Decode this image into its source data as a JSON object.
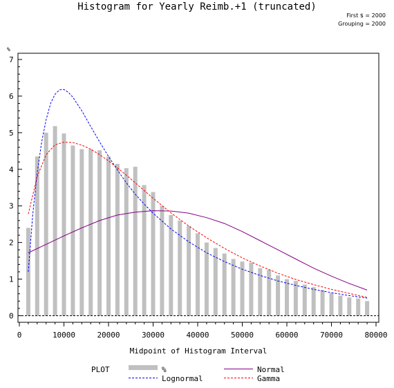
{
  "chart_data": {
    "type": "bar",
    "title": "Histogram for Yearly Reimb.+1 (truncated)",
    "notes": [
      "First $ = 2000",
      "Grouping = 2000"
    ],
    "xlabel": "Midpoint of Histogram Interval",
    "ylabel": "%",
    "xlim": [
      0,
      80000
    ],
    "ylim": [
      0,
      7
    ],
    "x_ticks": [
      0,
      10000,
      20000,
      30000,
      40000,
      50000,
      60000,
      70000,
      80000
    ],
    "y_ticks": [
      0,
      1,
      2,
      3,
      4,
      5,
      6,
      7
    ],
    "bar_color": "#c0c0c0",
    "bars": {
      "midpoints": [
        2000,
        4000,
        6000,
        8000,
        10000,
        12000,
        14000,
        16000,
        18000,
        20000,
        22000,
        24000,
        26000,
        28000,
        30000,
        32000,
        34000,
        36000,
        38000,
        40000,
        42000,
        44000,
        46000,
        48000,
        50000,
        52000,
        54000,
        56000,
        58000,
        60000,
        62000,
        64000,
        66000,
        68000,
        70000,
        72000,
        74000,
        76000,
        78000
      ],
      "values": [
        2.4,
        4.35,
        5.0,
        5.18,
        4.98,
        4.65,
        4.55,
        4.55,
        4.52,
        4.35,
        4.15,
        4.03,
        4.07,
        3.57,
        3.38,
        3.0,
        2.75,
        2.6,
        2.45,
        2.25,
        2.0,
        1.85,
        1.7,
        1.55,
        1.48,
        1.45,
        1.3,
        1.25,
        1.1,
        1.0,
        0.95,
        0.85,
        0.78,
        0.7,
        0.62,
        0.55,
        0.5,
        0.47,
        0.4
      ]
    },
    "curves": [
      {
        "name": "Normal",
        "color": "#800080",
        "dash": "solid",
        "x": [
          2000,
          6000,
          10000,
          14000,
          18000,
          22000,
          26000,
          30000,
          34000,
          38000,
          42000,
          46000,
          50000,
          54000,
          58000,
          62000,
          66000,
          70000,
          74000,
          78000
        ],
        "y": [
          1.72,
          1.95,
          2.18,
          2.4,
          2.6,
          2.75,
          2.83,
          2.87,
          2.86,
          2.8,
          2.68,
          2.52,
          2.3,
          2.05,
          1.8,
          1.55,
          1.3,
          1.08,
          0.88,
          0.7
        ]
      },
      {
        "name": "Lognormal",
        "color": "#0000ff",
        "dash": "dashed",
        "x": [
          2000,
          3000,
          4000,
          5000,
          6000,
          7000,
          8000,
          9000,
          10000,
          11000,
          12000,
          14000,
          16000,
          18000,
          20000,
          22000,
          24000,
          26000,
          28000,
          30000,
          34000,
          38000,
          42000,
          46000,
          50000,
          54000,
          58000,
          62000,
          66000,
          70000,
          74000,
          78000
        ],
        "y": [
          1.2,
          2.75,
          3.9,
          4.75,
          5.35,
          5.8,
          6.05,
          6.17,
          6.18,
          6.1,
          5.97,
          5.6,
          5.17,
          4.75,
          4.35,
          3.98,
          3.63,
          3.32,
          3.05,
          2.8,
          2.37,
          2.02,
          1.72,
          1.48,
          1.27,
          1.1,
          0.95,
          0.83,
          0.72,
          0.63,
          0.55,
          0.48
        ]
      },
      {
        "name": "Gamma",
        "color": "#ff0000",
        "dash": "dashed",
        "x": [
          2000,
          4000,
          6000,
          8000,
          10000,
          12000,
          14000,
          16000,
          18000,
          20000,
          22000,
          24000,
          26000,
          28000,
          30000,
          34000,
          38000,
          42000,
          46000,
          50000,
          54000,
          58000,
          62000,
          66000,
          70000,
          74000,
          78000
        ],
        "y": [
          2.78,
          3.8,
          4.4,
          4.67,
          4.74,
          4.73,
          4.66,
          4.55,
          4.4,
          4.23,
          4.04,
          3.84,
          3.63,
          3.42,
          3.21,
          2.81,
          2.45,
          2.13,
          1.84,
          1.58,
          1.36,
          1.16,
          0.99,
          0.85,
          0.72,
          0.61,
          0.5
        ]
      }
    ],
    "legend": {
      "heading": "PLOT",
      "entries": [
        {
          "label": "%",
          "style": "bar",
          "color": "#c0c0c0"
        },
        {
          "label": "Normal",
          "style": "solid",
          "color": "#800080"
        },
        {
          "label": "Lognormal",
          "style": "dashed",
          "color": "#0000ff"
        },
        {
          "label": "Gamma",
          "style": "dashed",
          "color": "#ff0000"
        }
      ],
      "placement": "bottom"
    }
  }
}
